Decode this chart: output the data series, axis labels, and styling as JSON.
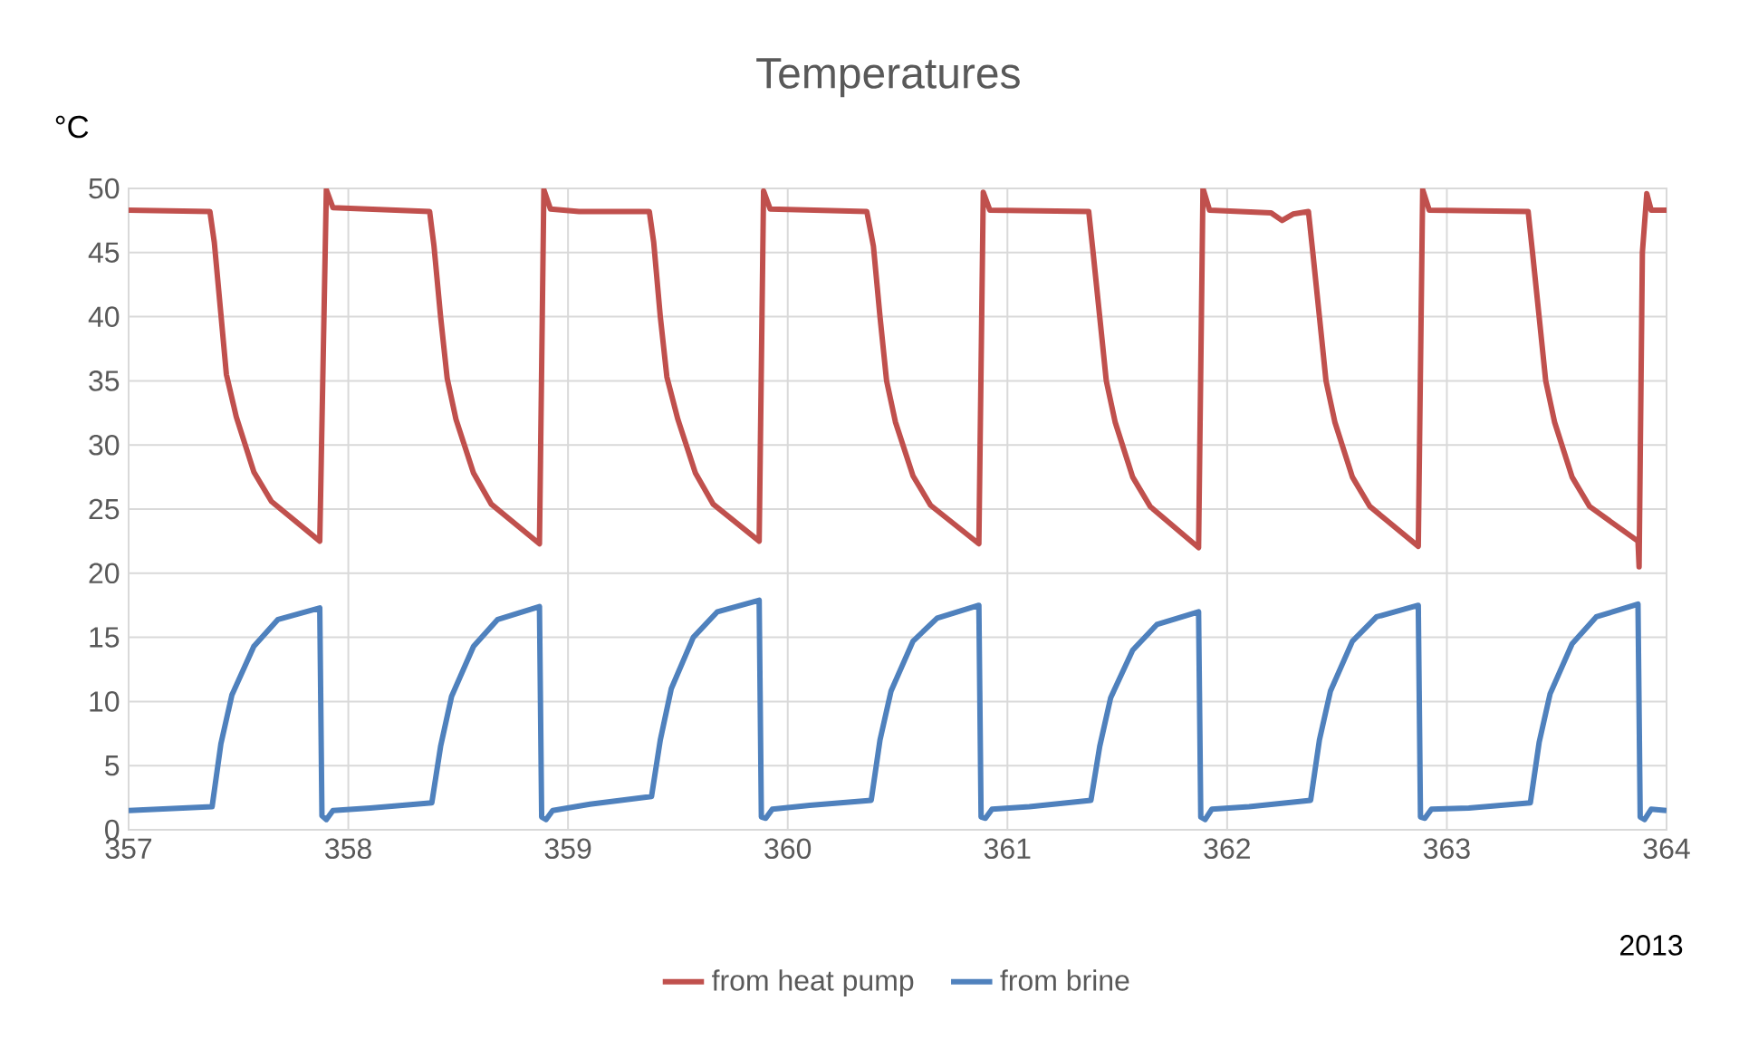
{
  "chart_data": {
    "type": "line",
    "title": "Temperatures",
    "ylabel": "°C",
    "xlabel": "2013",
    "xlim": [
      357,
      364
    ],
    "xticks": [
      357,
      358,
      359,
      360,
      361,
      362,
      363,
      364
    ],
    "ylim": [
      0,
      50
    ],
    "yticks": [
      0,
      5,
      10,
      15,
      20,
      25,
      30,
      35,
      40,
      45,
      50
    ],
    "grid": true,
    "legend": "bottom",
    "marker": "none",
    "line_style": "solid",
    "series": [
      {
        "name": "from heat pump",
        "color": "#c0504d",
        "x": [
          357.0,
          357.37,
          357.39,
          357.42,
          357.445,
          357.49,
          357.57,
          357.65,
          357.87,
          357.9,
          357.93,
          358.37,
          358.39,
          358.42,
          358.45,
          358.49,
          358.57,
          358.65,
          358.87,
          358.89,
          358.92,
          359.05,
          359.37,
          359.39,
          359.42,
          359.45,
          359.5,
          359.58,
          359.66,
          359.87,
          359.89,
          359.92,
          360.36,
          360.39,
          360.42,
          360.45,
          360.49,
          360.57,
          360.65,
          360.87,
          360.89,
          360.92,
          361.37,
          361.39,
          361.42,
          361.45,
          361.49,
          361.57,
          361.65,
          361.87,
          361.89,
          361.92,
          362.2,
          362.25,
          362.3,
          362.37,
          362.39,
          362.42,
          362.45,
          362.49,
          362.57,
          362.65,
          362.87,
          362.89,
          362.92,
          363.37,
          363.39,
          363.42,
          363.45,
          363.49,
          363.57,
          363.65,
          363.87,
          363.875,
          363.89,
          363.91,
          363.93,
          364.0
        ],
        "values": [
          48.3,
          48.2,
          45.8,
          40.2,
          35.5,
          32.2,
          27.9,
          25.6,
          22.5,
          49.9,
          48.5,
          48.2,
          45.5,
          40,
          35.2,
          32,
          27.8,
          25.4,
          22.3,
          49.9,
          48.4,
          48.2,
          48.2,
          45.8,
          40,
          35.3,
          32,
          27.8,
          25.4,
          22.5,
          49.8,
          48.4,
          48.2,
          45.5,
          40,
          35,
          31.8,
          27.6,
          25.3,
          22.3,
          49.7,
          48.3,
          48.2,
          45,
          40,
          35,
          31.8,
          27.5,
          25.2,
          22.0,
          50.0,
          48.3,
          48.1,
          47.5,
          48.0,
          48.2,
          45,
          40,
          35,
          31.8,
          27.5,
          25.2,
          22.1,
          49.9,
          48.3,
          48.2,
          45,
          40,
          35,
          31.8,
          27.5,
          25.2,
          22.5,
          20.5,
          45,
          49.6,
          48.3,
          48.3
        ]
      },
      {
        "name": "from brine",
        "color": "#4f81bd",
        "x": [
          357.0,
          357.38,
          357.42,
          357.47,
          357.57,
          357.68,
          357.87,
          357.88,
          357.9,
          357.93,
          358.1,
          358.38,
          358.42,
          358.47,
          358.57,
          358.68,
          358.87,
          358.88,
          358.9,
          358.93,
          359.1,
          359.38,
          359.42,
          359.47,
          359.57,
          359.68,
          359.87,
          359.88,
          359.9,
          359.93,
          360.1,
          360.38,
          360.42,
          360.47,
          360.57,
          360.68,
          360.87,
          360.88,
          360.9,
          360.93,
          361.1,
          361.38,
          361.42,
          361.47,
          361.57,
          361.68,
          361.87,
          361.88,
          361.9,
          361.93,
          362.1,
          362.38,
          362.42,
          362.47,
          362.57,
          362.68,
          362.87,
          362.88,
          362.9,
          362.93,
          363.1,
          363.38,
          363.42,
          363.47,
          363.57,
          363.68,
          363.87,
          363.88,
          363.9,
          363.93,
          364.0
        ],
        "values": [
          1.5,
          1.8,
          6.7,
          10.5,
          14.3,
          16.4,
          17.3,
          1.1,
          0.8,
          1.5,
          1.7,
          2.1,
          6.5,
          10.4,
          14.3,
          16.4,
          17.4,
          1.0,
          0.8,
          1.5,
          2.0,
          2.6,
          7.0,
          11,
          15,
          17,
          17.9,
          1.0,
          0.9,
          1.6,
          1.9,
          2.3,
          7,
          10.8,
          14.7,
          16.5,
          17.5,
          1.0,
          0.9,
          1.6,
          1.8,
          2.3,
          6.5,
          10.3,
          14,
          16,
          17.0,
          1.0,
          0.8,
          1.6,
          1.8,
          2.3,
          7,
          10.8,
          14.7,
          16.6,
          17.5,
          1.0,
          0.9,
          1.6,
          1.7,
          2.1,
          6.8,
          10.6,
          14.5,
          16.6,
          17.6,
          1.0,
          0.8,
          1.6,
          1.5
        ]
      }
    ]
  }
}
